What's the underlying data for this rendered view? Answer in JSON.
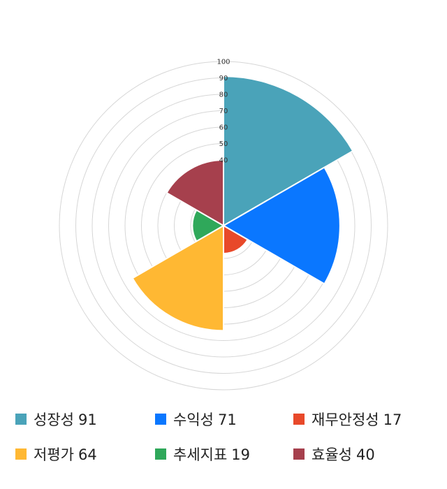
{
  "chart_data": {
    "type": "polar-area",
    "radial_ticks": [
      "100",
      "90",
      "80",
      "70",
      "60",
      "50",
      "40"
    ],
    "rmax": 100,
    "categories": [
      "성장성",
      "수익성",
      "재무안정성",
      "저평가",
      "추세지표",
      "효율성"
    ],
    "values": [
      91,
      71,
      17,
      64,
      19,
      40
    ],
    "colors": [
      "#4aa3b9",
      "#0a77ff",
      "#e8492a",
      "#ffb833",
      "#2fa85a",
      "#a6404d"
    ],
    "grid": true,
    "legend_position": "bottom"
  }
}
